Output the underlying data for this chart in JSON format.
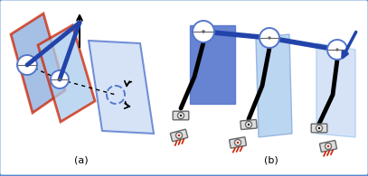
{
  "bg": "#ffffff",
  "border": "#5588cc",
  "dark_blue": "#2244aa",
  "mid_blue": "#5577cc",
  "light_blue": "#88aadd",
  "lighter_blue": "#aaccee",
  "lightest_blue": "#ccddf5",
  "red": "#cc2200",
  "black": "#111111",
  "white": "#ffffff",
  "gray_light": "#dddddd",
  "gray_mid": "#aaaaaa",
  "gray_dark": "#666666"
}
